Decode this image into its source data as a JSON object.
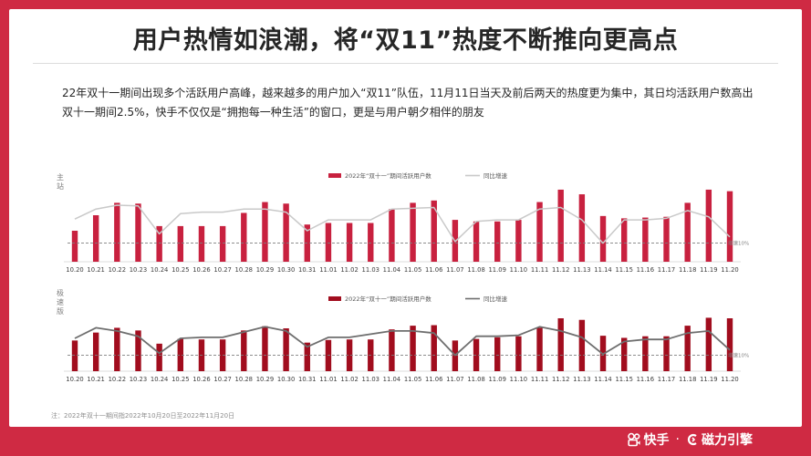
{
  "title": "用户热情如浪潮，将“双11”热度不断推向更高点",
  "description": "22年双十一期间出现多个活跃用户高峰，越来越多的用户加入“双11”队伍，11月11日当天及前后两天的热度更为集中，其日均活跃用户数高出双十一期间2.5%，快手不仅仅是“拥抱每一种生活”的窗口，更是与用户朝夕相伴的朋友",
  "note": "注：2022年双十一期间指2022年10月20日至2022年11月20日",
  "footer": {
    "brand1": "快手",
    "separator": "·",
    "brand2": "磁力引擎"
  },
  "colors": {
    "background": "#cf2a43",
    "bar_main": "#c8213f",
    "bar_speed": "#a10d1e",
    "line_main": "#c9c9c9",
    "line_speed": "#6e6e6e",
    "threshold": "#7f7f7f"
  },
  "chart_data": [
    {
      "type": "bar",
      "panel_label": "主站",
      "legend": [
        "2022年“双十一”期间活跃用户数",
        "同比增速"
      ],
      "legend_position": "top-center",
      "categories": [
        "10.20",
        "10.21",
        "10.22",
        "10.23",
        "10.24",
        "10.25",
        "10.26",
        "10.27",
        "10.28",
        "10.29",
        "10.30",
        "10.31",
        "11.01",
        "11.02",
        "11.03",
        "11.04",
        "11.05",
        "11.06",
        "11.07",
        "11.08",
        "11.09",
        "11.10",
        "11.11",
        "11.12",
        "11.13",
        "11.14",
        "11.15",
        "11.16",
        "11.17",
        "11.18",
        "11.19",
        "11.20"
      ],
      "series": [
        {
          "name": "2022年“双十一”期间活跃用户数",
          "kind": "bar",
          "values": [
            0.4,
            0.6,
            0.76,
            0.75,
            0.46,
            0.46,
            0.46,
            0.46,
            0.63,
            0.77,
            0.75,
            0.48,
            0.5,
            0.5,
            0.5,
            0.68,
            0.76,
            0.79,
            0.54,
            0.52,
            0.52,
            0.54,
            0.77,
            0.93,
            0.87,
            0.59,
            0.56,
            0.57,
            0.58,
            0.76,
            0.93,
            0.91
          ]
        },
        {
          "name": "同比增速",
          "kind": "line",
          "values": [
            0.55,
            0.68,
            0.73,
            0.72,
            0.36,
            0.62,
            0.64,
            0.64,
            0.68,
            0.68,
            0.64,
            0.4,
            0.54,
            0.54,
            0.54,
            0.68,
            0.69,
            0.7,
            0.26,
            0.52,
            0.54,
            0.54,
            0.68,
            0.7,
            0.54,
            0.24,
            0.54,
            0.54,
            0.56,
            0.66,
            0.58,
            0.32
          ]
        }
      ],
      "threshold": {
        "label": "增速10%",
        "value": 0.24
      },
      "ylim": [
        0,
        1
      ]
    },
    {
      "type": "bar",
      "panel_label": "极速版",
      "legend": [
        "2022年“双十一”期间活跃用户数",
        "同比增速"
      ],
      "legend_position": "top-center",
      "categories": [
        "10.20",
        "10.21",
        "10.22",
        "10.23",
        "10.24",
        "10.25",
        "10.26",
        "10.27",
        "10.28",
        "10.29",
        "10.30",
        "10.31",
        "11.01",
        "11.02",
        "11.03",
        "11.04",
        "11.05",
        "11.06",
        "11.07",
        "11.08",
        "11.09",
        "11.10",
        "11.11",
        "11.12",
        "11.13",
        "11.14",
        "11.15",
        "11.16",
        "11.17",
        "11.18",
        "11.19",
        "11.20"
      ],
      "series": [
        {
          "name": "2022年“双十一”期间活跃用户数",
          "kind": "bar",
          "values": [
            0.58,
            0.73,
            0.82,
            0.77,
            0.52,
            0.61,
            0.6,
            0.6,
            0.77,
            0.85,
            0.81,
            0.54,
            0.59,
            0.6,
            0.6,
            0.79,
            0.86,
            0.87,
            0.58,
            0.61,
            0.64,
            0.66,
            0.82,
            1.0,
            0.97,
            0.67,
            0.63,
            0.66,
            0.66,
            0.86,
            1.01,
            1.0
          ]
        },
        {
          "name": "同比增速",
          "kind": "line",
          "values": [
            0.62,
            0.82,
            0.76,
            0.66,
            0.34,
            0.62,
            0.64,
            0.64,
            0.74,
            0.84,
            0.76,
            0.46,
            0.64,
            0.64,
            0.7,
            0.76,
            0.76,
            0.72,
            0.3,
            0.66,
            0.66,
            0.68,
            0.84,
            0.76,
            0.64,
            0.32,
            0.56,
            0.6,
            0.6,
            0.72,
            0.76,
            0.4
          ]
        }
      ],
      "threshold": {
        "label": "增速10%",
        "value": 0.3
      },
      "ylim": [
        0,
        1
      ]
    }
  ]
}
